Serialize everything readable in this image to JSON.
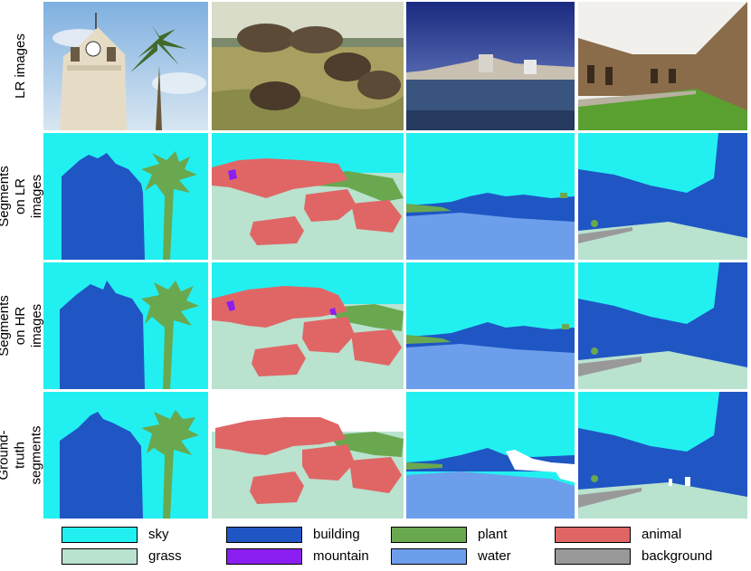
{
  "row_labels": [
    "LR images",
    "Segments on LR images",
    "Segments on HR images",
    "Ground-truth segments"
  ],
  "legend": [
    {
      "label": "sky",
      "color": "#22f0f0"
    },
    {
      "label": "building",
      "color": "#1f56c4"
    },
    {
      "label": "plant",
      "color": "#6aa84f"
    },
    {
      "label": "animal",
      "color": "#e06666"
    },
    {
      "label": "grass",
      "color": "#b9e2cf"
    },
    {
      "label": "mountain",
      "color": "#8b1ef0"
    },
    {
      "label": "water",
      "color": "#6d9eeb"
    },
    {
      "label": "background",
      "color": "#999999"
    }
  ],
  "columns": [
    "tower-scene",
    "bison-scene",
    "harbor-scene",
    "courtyard-scene"
  ]
}
